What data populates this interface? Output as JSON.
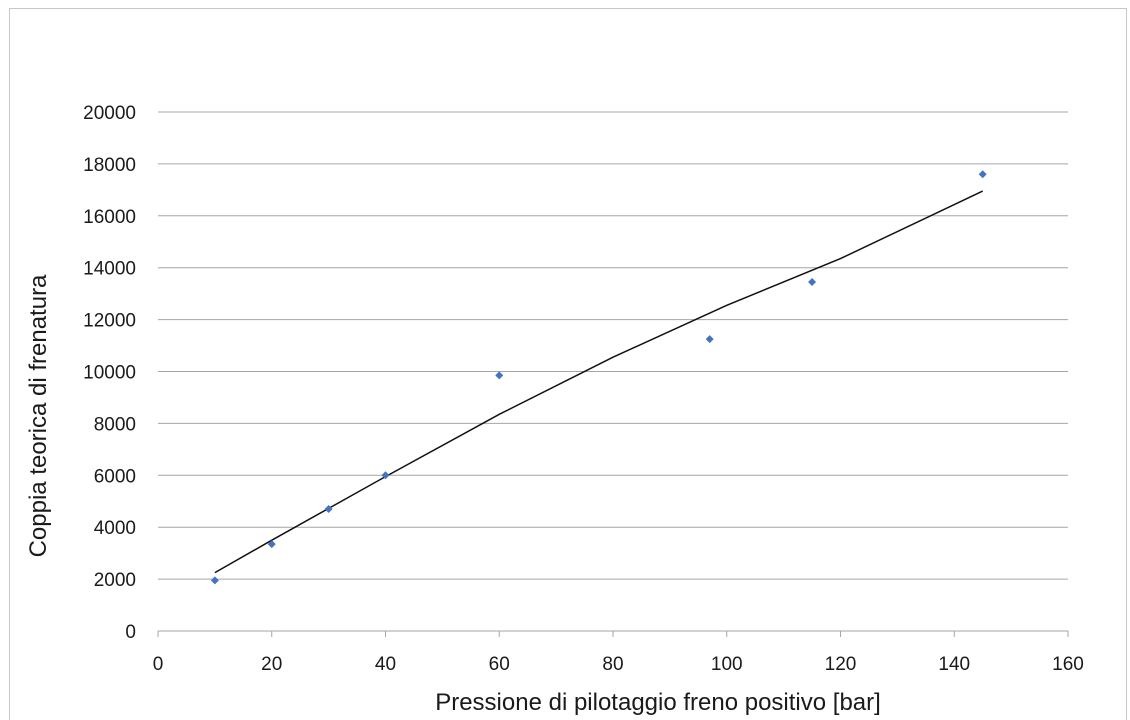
{
  "chart_data": {
    "type": "scatter",
    "title": "",
    "xlabel": "Pressione di pilotaggio freno positivo  [bar]",
    "ylabel": "Coppia teorica di frenatura",
    "xlim": [
      0,
      160
    ],
    "ylim": [
      0,
      20000
    ],
    "x_ticks": [
      "0",
      "20",
      "40",
      "60",
      "80",
      "100",
      "120",
      "140",
      "160"
    ],
    "y_ticks": [
      "0",
      "2000",
      "4000",
      "6000",
      "8000",
      "10000",
      "12000",
      "14000",
      "16000",
      "18000",
      "20000"
    ],
    "grid": "horizontal",
    "legend": "none",
    "marker_color": "#4472c4",
    "trendline_color": "#111111",
    "series": [
      {
        "x": [
          10,
          20,
          30,
          40,
          60,
          97,
          115,
          145
        ],
        "y": [
          1950,
          3350,
          4700,
          6000,
          9850,
          11250,
          13450,
          17600
        ]
      }
    ],
    "trendline": {
      "x": [
        10,
        20,
        40,
        60,
        80,
        100,
        120,
        145
      ],
      "y": [
        2250,
        3500,
        5950,
        8350,
        10550,
        12550,
        14350,
        16950
      ]
    }
  }
}
